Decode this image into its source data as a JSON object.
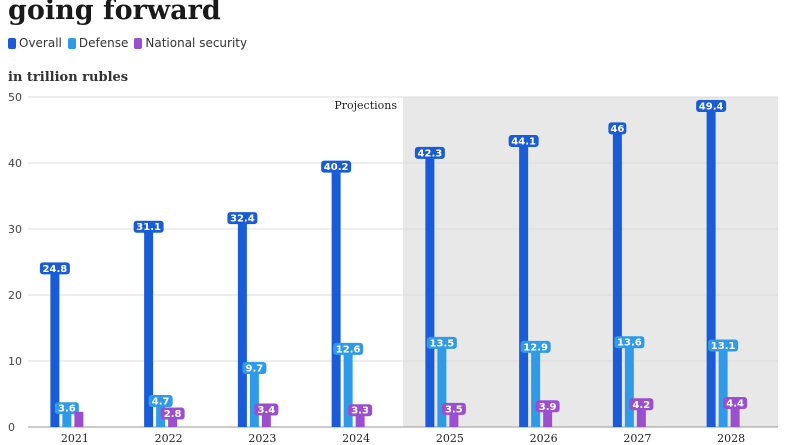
{
  "title": "going forward",
  "legend": {
    "items": [
      {
        "label": "Overall",
        "color": "#1a5cd8"
      },
      {
        "label": "Defense",
        "color": "#2f9ae8"
      },
      {
        "label": "National security",
        "color": "#9b4fcf"
      }
    ]
  },
  "unit_label": "in trillion rubles",
  "projection_label": "Projections",
  "chart_data": {
    "type": "bar",
    "categories": [
      "2021",
      "2022",
      "2023",
      "2024",
      "2025",
      "2026",
      "2027",
      "2028"
    ],
    "series": [
      {
        "name": "Overall",
        "color": "#1a5cd8",
        "values": [
          24.8,
          31.1,
          32.4,
          40.2,
          42.3,
          44.1,
          46,
          49.4
        ],
        "labels": [
          "24.8",
          "31.1",
          "32.4",
          "40.2",
          "42.3",
          "44.1",
          "46",
          "49.4"
        ]
      },
      {
        "name": "Defense",
        "color": "#2f9ae8",
        "values": [
          3.6,
          4.7,
          9.7,
          12.6,
          13.5,
          12.9,
          13.6,
          13.1
        ],
        "labels": [
          "3.6",
          "4.7",
          "9.7",
          "12.6",
          "13.5",
          "12.9",
          "13.6",
          "13.1"
        ]
      },
      {
        "name": "National security",
        "color": "#9b4fcf",
        "values": [
          2.3,
          2.8,
          3.4,
          3.3,
          3.5,
          3.9,
          4.2,
          4.4
        ],
        "labels": [
          "",
          "2.8",
          "3.4",
          "3.3",
          "3.5",
          "3.9",
          "4.2",
          "4.4"
        ]
      }
    ],
    "ylim": [
      0,
      50
    ],
    "yticks": [
      0,
      10,
      20,
      30,
      40,
      50
    ],
    "projection_start_category": "2025",
    "grid": true
  }
}
